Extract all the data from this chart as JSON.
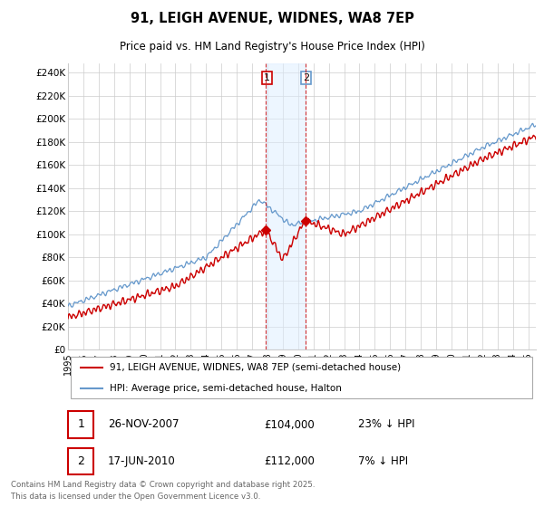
{
  "title_line1": "91, LEIGH AVENUE, WIDNES, WA8 7EP",
  "title_line2": "Price paid vs. HM Land Registry's House Price Index (HPI)",
  "ylabel_ticks": [
    "£0",
    "£20K",
    "£40K",
    "£60K",
    "£80K",
    "£100K",
    "£120K",
    "£140K",
    "£160K",
    "£180K",
    "£200K",
    "£220K",
    "£240K"
  ],
  "ytick_values": [
    0,
    20000,
    40000,
    60000,
    80000,
    100000,
    120000,
    140000,
    160000,
    180000,
    200000,
    220000,
    240000
  ],
  "ylim": [
    0,
    248000
  ],
  "legend_line1": "91, LEIGH AVENUE, WIDNES, WA8 7EP (semi-detached house)",
  "legend_line2": "HPI: Average price, semi-detached house, Halton",
  "annotation1_num": "1",
  "annotation1_date": "26-NOV-2007",
  "annotation1_price": "£104,000",
  "annotation1_hpi": "23% ↓ HPI",
  "annotation2_num": "2",
  "annotation2_date": "17-JUN-2010",
  "annotation2_price": "£112,000",
  "annotation2_hpi": "7% ↓ HPI",
  "footnote": "Contains HM Land Registry data © Crown copyright and database right 2025.\nThis data is licensed under the Open Government Licence v3.0.",
  "red_color": "#cc0000",
  "blue_color": "#6699cc",
  "vline1_x": 2007.9,
  "vline2_x": 2010.46,
  "shade_color": "#ddeeff",
  "background_color": "#ffffff",
  "grid_color": "#cccccc",
  "xmin": 1995,
  "xmax": 2025.5,
  "sale1_x": 2007.9,
  "sale1_y": 104000,
  "sale2_x": 2010.46,
  "sale2_y": 112000
}
